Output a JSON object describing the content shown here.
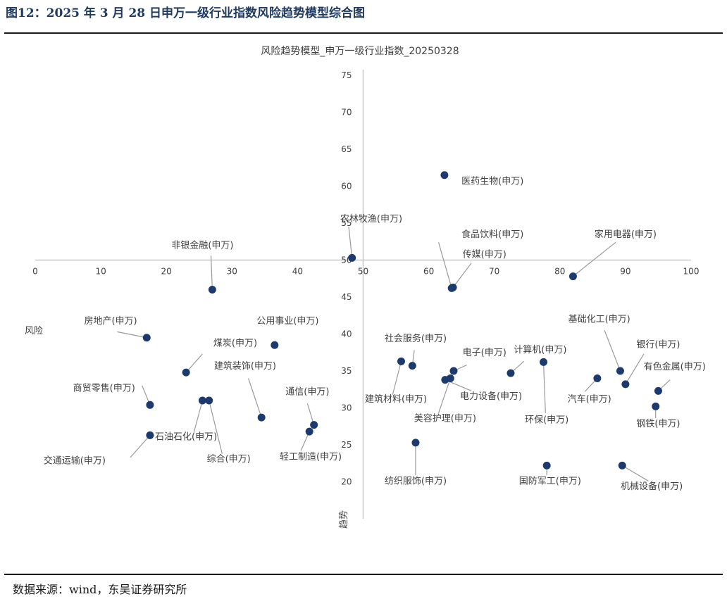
{
  "figure": {
    "title": "图12：2025 年 3 月 28 日申万一级行业指数风险趋势模型综合图",
    "source": "数据来源：wind，东吴证券研究所"
  },
  "colors": {
    "point": "#1c3a6e",
    "leader": "#9a9a9a",
    "axis": "#c8c8c8",
    "title": "#1f3b63"
  },
  "chart_data": {
    "type": "scatter",
    "title": "风险趋势模型_申万一级行业指数_20250328",
    "xlabel": "风险",
    "ylabel": "趋势",
    "xlim": [
      0,
      100
    ],
    "ylim": [
      15,
      75
    ],
    "x_ticks": [
      0,
      10,
      20,
      30,
      40,
      50,
      60,
      70,
      80,
      90,
      100
    ],
    "y_ticks": [
      20,
      25,
      30,
      35,
      40,
      45,
      50,
      55,
      60,
      65,
      70,
      75
    ],
    "axis_cross": {
      "x": 50,
      "y": 50
    },
    "grid": false,
    "points": [
      {
        "name": "医药生物(申万)",
        "x": 62.4,
        "y": 61.5,
        "label_anchor": "right",
        "label_pos": [
          65,
          60.3
        ]
      },
      {
        "name": "农林牧渔(申万)",
        "x": 48.3,
        "y": 50.3,
        "label_anchor": "right",
        "label_pos": [
          46.5,
          55.2
        ],
        "leader": [
          47.8,
          54.5
        ]
      },
      {
        "name": "食品饮料(申万)",
        "x": 63.5,
        "y": 46.2,
        "label_anchor": "right",
        "label_pos": [
          65,
          53.1
        ],
        "leader": [
          61.5,
          52.4
        ]
      },
      {
        "name": "传媒(申万)",
        "x": 63.7,
        "y": 46.3,
        "label_anchor": "middle",
        "label_pos": [
          68.5,
          50.4
        ],
        "leader": [
          66.5,
          49.6
        ]
      },
      {
        "name": "家用电器(申万)",
        "x": 82.0,
        "y": 47.8,
        "label_anchor": "middle",
        "label_pos": [
          90,
          53.1
        ],
        "leader": [
          88.5,
          52.4
        ]
      },
      {
        "name": "非银金融(申万)",
        "x": 27.0,
        "y": 46.0,
        "label_anchor": "middle",
        "label_pos": [
          25.5,
          51.6
        ],
        "leader": [
          26.8,
          50.6
        ]
      },
      {
        "name": "房地产(申万)",
        "x": 17.0,
        "y": 39.5,
        "label_anchor": "middle",
        "label_pos": [
          11.5,
          41.4
        ],
        "leader": [
          12.5,
          40.3
        ]
      },
      {
        "name": "公用事业(申万)",
        "x": 36.5,
        "y": 38.5,
        "label_anchor": "middle",
        "label_pos": [
          38.5,
          41.4
        ]
      },
      {
        "name": "煤炭(申万)",
        "x": 23.0,
        "y": 34.8,
        "label_anchor": "middle",
        "label_pos": [
          30.5,
          38.4
        ],
        "leader": [
          25.5,
          37.3
        ]
      },
      {
        "name": "建筑装饰(申万)",
        "x": 34.5,
        "y": 28.7,
        "label_anchor": "middle",
        "label_pos": [
          32,
          35.3
        ],
        "leader": [
          32.5,
          34.0
        ]
      },
      {
        "name": "商贸零售(申万)",
        "x": 17.5,
        "y": 30.4,
        "label_anchor": "middle",
        "label_pos": [
          10.5,
          32.3
        ],
        "leader": [
          16.3,
          33.0
        ]
      },
      {
        "name": "通信(申万)",
        "x": 42.5,
        "y": 27.7,
        "label_anchor": "middle",
        "label_pos": [
          41.5,
          31.8
        ],
        "leader": [
          41.5,
          30.6
        ]
      },
      {
        "name": "石油石化(申万)",
        "x": 25.5,
        "y": 31.0,
        "label_anchor": "middle",
        "label_pos": [
          23,
          25.7
        ],
        "leader": [
          24.2,
          26.7
        ]
      },
      {
        "name": "综合(申万)",
        "x": 26.5,
        "y": 31.0,
        "label_anchor": "middle",
        "label_pos": [
          29.5,
          22.7
        ],
        "leader": [
          28.5,
          23.8
        ]
      },
      {
        "name": "轻工制造(申万)",
        "x": 41.8,
        "y": 26.8,
        "label_anchor": "middle",
        "label_pos": [
          42,
          23.0
        ],
        "leader": [
          40.5,
          24.2
        ]
      },
      {
        "name": "交通运输(申万)",
        "x": 17.5,
        "y": 26.3,
        "label_anchor": "middle",
        "label_pos": [
          6,
          22.5
        ],
        "leader": [
          14.5,
          23.3
        ]
      },
      {
        "name": "社会服务(申万)",
        "x": 57.5,
        "y": 35.7,
        "label_anchor": "middle",
        "label_pos": [
          58,
          39.0
        ],
        "leader": [
          57.8,
          37.8
        ]
      },
      {
        "name": "建筑材料(申万)",
        "x": 55.8,
        "y": 36.3,
        "label_anchor": "middle",
        "label_pos": [
          55,
          30.8
        ],
        "leader": [
          54.5,
          31.8
        ]
      },
      {
        "name": "电子(申万)",
        "x": 63.8,
        "y": 35.0,
        "label_anchor": "middle",
        "label_pos": [
          68.5,
          37.1
        ],
        "leader": [
          65.8,
          35.8
        ]
      },
      {
        "name": "电力设备(申万)",
        "x": 62.5,
        "y": 33.8,
        "label_anchor": "middle",
        "label_pos": [
          69.5,
          31.2
        ],
        "leader": [
          66.5,
          32.3
        ]
      },
      {
        "name": "美容护理(申万)",
        "x": 63.3,
        "y": 34.0,
        "label_anchor": "middle",
        "label_pos": [
          62.5,
          28.2
        ],
        "leader": [
          61.5,
          29.3
        ]
      },
      {
        "name": "计算机(申万)",
        "x": 72.5,
        "y": 34.7,
        "label_anchor": "middle",
        "label_pos": [
          77,
          37.5
        ],
        "leader": [
          74.5,
          36.3
        ]
      },
      {
        "name": "环保(申万)",
        "x": 77.5,
        "y": 36.2,
        "label_anchor": "middle",
        "label_pos": [
          78,
          28.0
        ],
        "leader": [
          77.8,
          29.3
        ]
      },
      {
        "name": "基础化工(申万)",
        "x": 89.2,
        "y": 35.0,
        "label_anchor": "middle",
        "label_pos": [
          86,
          41.6
        ],
        "leader": [
          86.8,
          40.5
        ]
      },
      {
        "name": "银行(申万)",
        "x": 90.0,
        "y": 33.2,
        "label_anchor": "middle",
        "label_pos": [
          95,
          38.2
        ],
        "leader": [
          92.8,
          37.3
        ]
      },
      {
        "name": "汽车(申万)",
        "x": 85.7,
        "y": 34.0,
        "label_anchor": "middle",
        "label_pos": [
          84.5,
          30.8
        ],
        "leader": [
          83.8,
          32.2
        ]
      },
      {
        "name": "有色金属(申万)",
        "x": 95.0,
        "y": 32.3,
        "label_anchor": "middle",
        "label_pos": [
          97.5,
          35.2
        ],
        "leader": [
          96.8,
          33.8
        ]
      },
      {
        "name": "钢铁(申万)",
        "x": 94.6,
        "y": 30.2,
        "label_anchor": "middle",
        "label_pos": [
          95,
          27.5
        ],
        "leader": [
          94.6,
          28.6
        ]
      },
      {
        "name": "纺织服饰(申万)",
        "x": 58.0,
        "y": 25.3,
        "label_anchor": "middle",
        "label_pos": [
          58,
          19.7
        ],
        "leader": [
          58.0,
          20.9
        ]
      },
      {
        "name": "国防军工(申万)",
        "x": 78.0,
        "y": 22.2,
        "label_anchor": "middle",
        "label_pos": [
          78.5,
          19.7
        ],
        "leader": [
          78.0,
          20.9
        ]
      },
      {
        "name": "机械设备(申万)",
        "x": 89.5,
        "y": 22.2,
        "label_anchor": "middle",
        "label_pos": [
          94,
          19.0
        ],
        "leader": [
          93.5,
          20.1
        ]
      }
    ]
  }
}
